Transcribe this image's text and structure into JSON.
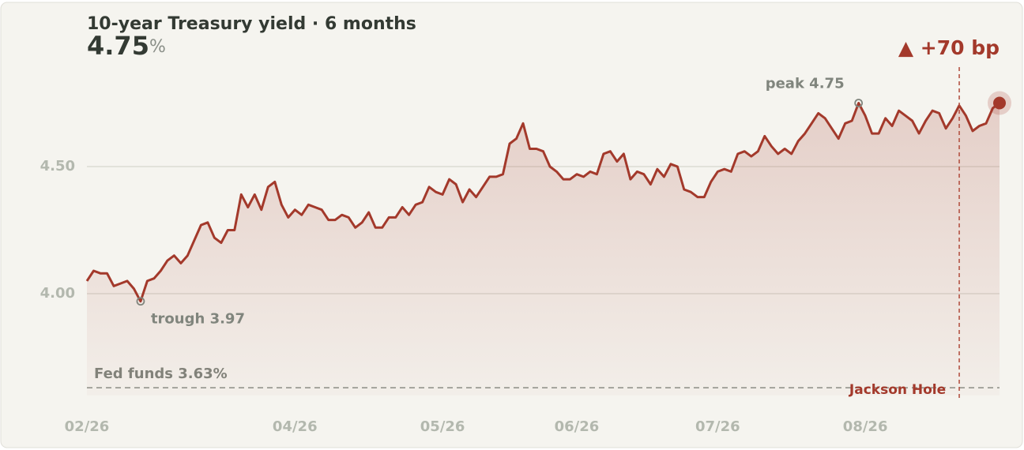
{
  "chart_data": {
    "type": "line",
    "title": "10-year Treasury yield · 6 months",
    "current": "4.75",
    "current_unit": "%",
    "change": "▲ +70 bp",
    "color": "#a3392b",
    "values": [
      4.05,
      4.09,
      4.08,
      4.08,
      4.03,
      4.04,
      4.05,
      4.02,
      3.97,
      4.05,
      4.06,
      4.09,
      4.13,
      4.15,
      4.12,
      4.15,
      4.21,
      4.27,
      4.28,
      4.22,
      4.2,
      4.25,
      4.25,
      4.39,
      4.34,
      4.39,
      4.33,
      4.42,
      4.44,
      4.35,
      4.3,
      4.33,
      4.31,
      4.35,
      4.34,
      4.33,
      4.29,
      4.29,
      4.31,
      4.3,
      4.26,
      4.28,
      4.32,
      4.26,
      4.26,
      4.3,
      4.3,
      4.34,
      4.31,
      4.35,
      4.36,
      4.42,
      4.4,
      4.39,
      4.45,
      4.43,
      4.36,
      4.41,
      4.38,
      4.42,
      4.46,
      4.46,
      4.47,
      4.59,
      4.61,
      4.67,
      4.57,
      4.57,
      4.56,
      4.5,
      4.48,
      4.45,
      4.45,
      4.47,
      4.46,
      4.48,
      4.47,
      4.55,
      4.56,
      4.52,
      4.55,
      4.45,
      4.48,
      4.47,
      4.43,
      4.49,
      4.46,
      4.51,
      4.5,
      4.41,
      4.4,
      4.38,
      4.38,
      4.44,
      4.48,
      4.49,
      4.48,
      4.55,
      4.56,
      4.54,
      4.56,
      4.62,
      4.58,
      4.55,
      4.57,
      4.55,
      4.6,
      4.63,
      4.67,
      4.71,
      4.69,
      4.65,
      4.61,
      4.67,
      4.68,
      4.75,
      4.7,
      4.63,
      4.63,
      4.69,
      4.66,
      4.72,
      4.7,
      4.68,
      4.63,
      4.68,
      4.72,
      4.71,
      4.65,
      4.69,
      4.74,
      4.7,
      4.64,
      4.66,
      4.67,
      4.73,
      4.75
    ],
    "xlim": [
      0,
      136
    ],
    "xticks": [
      {
        "value": 0,
        "label": "02/26"
      },
      {
        "value": 31,
        "label": "04/26"
      },
      {
        "value": 53,
        "label": "05/26"
      },
      {
        "value": 73,
        "label": "06/26"
      },
      {
        "value": 94,
        "label": "07/26"
      },
      {
        "value": 116,
        "label": "08/26"
      }
    ],
    "ylim": [
      3.6,
      4.9
    ],
    "yticks": [
      {
        "value": 4,
        "label": "4.00"
      },
      {
        "value": 4.5,
        "label": "4.50"
      }
    ],
    "grid": true,
    "reference_line": {
      "label": "Fed funds 3.63%",
      "value": 3.63
    },
    "event": {
      "label": "Jackson Hole",
      "x": 130
    },
    "peak": {
      "label": "peak 4.75",
      "x": 115
    },
    "trough": {
      "label": "trough 3.97",
      "x": 8
    }
  }
}
